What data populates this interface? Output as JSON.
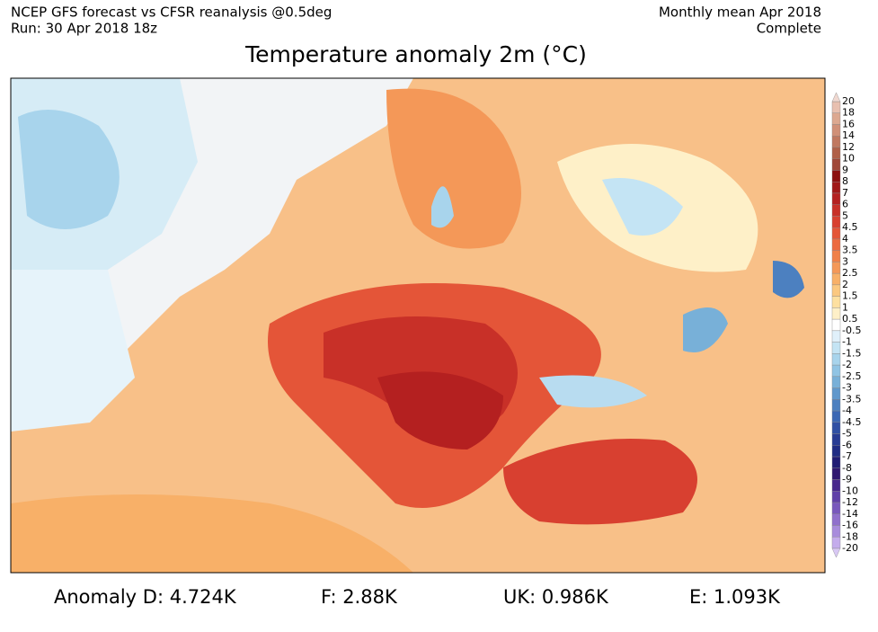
{
  "header": {
    "left": [
      "NCEP GFS forecast vs CFSR reanalysis @0.5deg",
      "Run: 30 Apr 2018 18z"
    ],
    "right": [
      "Monthly mean Apr 2018",
      "Complete"
    ]
  },
  "title": "Temperature anomaly 2m (°C)",
  "colorbar": {
    "labels": [
      "20",
      "18",
      "16",
      "14",
      "12",
      "10",
      "9",
      "8",
      "7",
      "6",
      "5",
      "4.5",
      "4",
      "3.5",
      "3",
      "2.5",
      "2",
      "1.5",
      "1",
      "0.5",
      "-0.5",
      "-1",
      "-1.5",
      "-2",
      "-2.5",
      "-3",
      "-3.5",
      "-4",
      "-4.5",
      "-5",
      "-6",
      "-7",
      "-8",
      "-9",
      "-10",
      "-12",
      "-14",
      "-16",
      "-18",
      "-20"
    ],
    "colors": [
      "#e8c0b0",
      "#dca890",
      "#d09078",
      "#c07860",
      "#b06048",
      "#a04838",
      "#8c1010",
      "#a01818",
      "#b42020",
      "#c83028",
      "#d84030",
      "#e45538",
      "#ec6a40",
      "#f08048",
      "#f49858",
      "#f8b068",
      "#fbc880",
      "#fde0a0",
      "#fef0c8",
      "#ffffff",
      "#e0f0fa",
      "#c4e4f4",
      "#a8d4ec",
      "#90c4e4",
      "#78b0d8",
      "#6098cc",
      "#4c80c0",
      "#3c68b4",
      "#3050a4",
      "#283c94",
      "#202c84",
      "#201c74",
      "#301870",
      "#48288c",
      "#6040a8",
      "#7858bc",
      "#9070cc",
      "#a88cdc",
      "#c4acec"
    ],
    "top_color": "#f0d8d0",
    "bottom_color": "#d8c8f4"
  },
  "footer": [
    "Anomaly D: 4.724K",
    "F: 2.88K",
    "UK: 0.986K",
    "E: 1.093K"
  ]
}
